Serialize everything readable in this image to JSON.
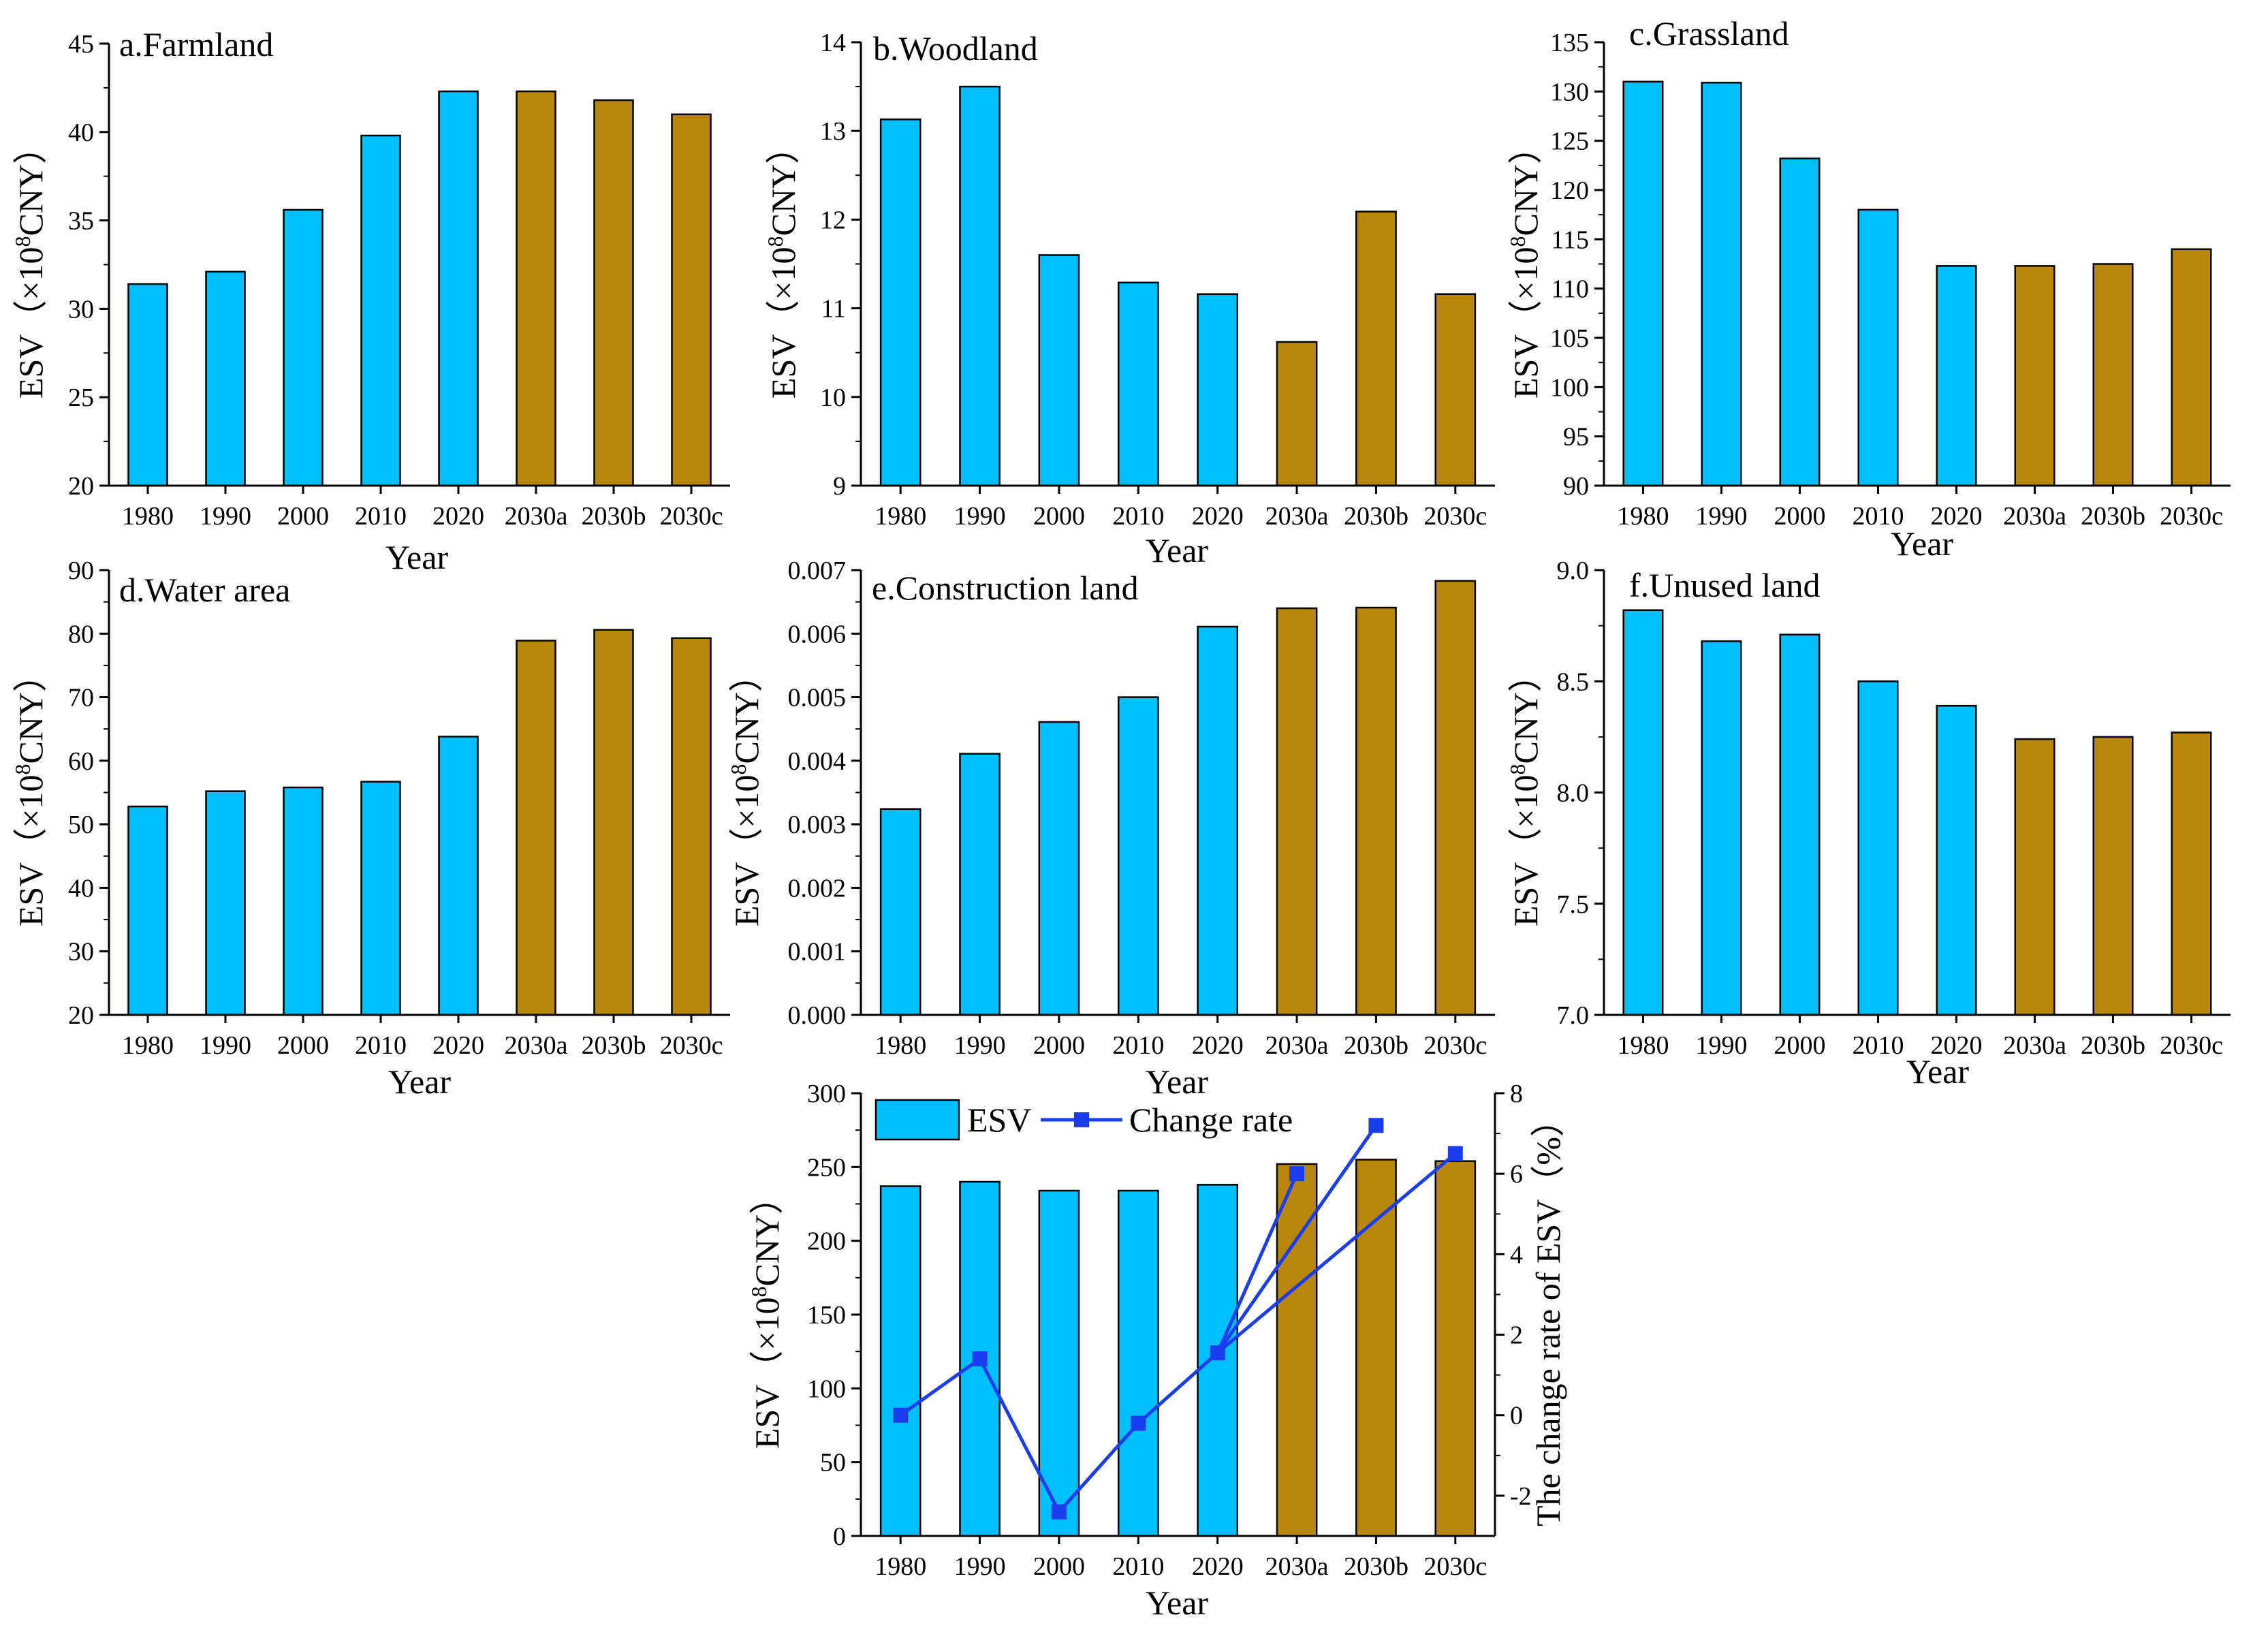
{
  "colors": {
    "observed": "#00bfff",
    "scenario": "#b8860b",
    "line": "#1a3df0",
    "axis": "#000000"
  },
  "ylabel_parts": {
    "pre": "ESV（×10",
    "sup": "8",
    "post": "CNY）"
  },
  "chart_data": [
    {
      "id": "a",
      "type": "bar",
      "title": "a.Farmland",
      "categories": [
        "1980",
        "1990",
        "2000",
        "2010",
        "2020",
        "2030a",
        "2030b",
        "2030c"
      ],
      "values": [
        31.4,
        32.1,
        35.6,
        39.8,
        42.3,
        42.3,
        41.8,
        41.0
      ],
      "ylim": [
        20,
        45
      ],
      "yticks": [
        "20",
        "25",
        "30",
        "35",
        "40",
        "45"
      ],
      "xlabel": "Year",
      "ylabel": "ESV（×10^8CNY）"
    },
    {
      "id": "b",
      "type": "bar",
      "title": "b.Woodland",
      "categories": [
        "1980",
        "1990",
        "2000",
        "2010",
        "2020",
        "2030a",
        "2030b",
        "2030c"
      ],
      "values": [
        13.13,
        13.5,
        11.6,
        11.29,
        11.16,
        10.62,
        12.09,
        11.16
      ],
      "ylim": [
        9,
        14
      ],
      "yticks": [
        "9",
        "10",
        "11",
        "12",
        "13",
        "14"
      ],
      "xlabel": "Year",
      "ylabel": "ESV（×10^8CNY）"
    },
    {
      "id": "c",
      "type": "bar",
      "title": "c.Grassland",
      "categories": [
        "1980",
        "1990",
        "2000",
        "2010",
        "2020",
        "2030a",
        "2030b",
        "2030c"
      ],
      "values": [
        131.0,
        130.9,
        123.2,
        118.0,
        112.3,
        112.3,
        112.5,
        114.0
      ],
      "ylim": [
        90,
        135
      ],
      "yticks": [
        "90",
        "95",
        "100",
        "105",
        "110",
        "115",
        "120",
        "125",
        "130",
        "135"
      ],
      "xlabel": "Year",
      "ylabel": "ESV（×10^8CNY）"
    },
    {
      "id": "d",
      "type": "bar",
      "title": "d.Water area",
      "categories": [
        "1980",
        "1990",
        "2000",
        "2010",
        "2020",
        "2030a",
        "2030b",
        "2030c"
      ],
      "values": [
        52.8,
        55.2,
        55.8,
        56.7,
        63.8,
        78.9,
        80.6,
        79.3
      ],
      "ylim": [
        20,
        90
      ],
      "yticks": [
        "20",
        "30",
        "40",
        "50",
        "60",
        "70",
        "80",
        "90"
      ],
      "xlabel": "Year",
      "ylabel": "ESV（×10^8CNY）"
    },
    {
      "id": "e",
      "type": "bar",
      "title": "e.Construction land",
      "categories": [
        "1980",
        "1990",
        "2000",
        "2010",
        "2020",
        "2030a",
        "2030b",
        "2030c"
      ],
      "values": [
        0.00324,
        0.00411,
        0.00461,
        0.005,
        0.00611,
        0.0064,
        0.00641,
        0.00683
      ],
      "ylim": [
        0,
        0.007
      ],
      "yticks": [
        "0.000",
        "0.001",
        "0.002",
        "0.003",
        "0.004",
        "0.005",
        "0.006",
        "0.007"
      ],
      "xlabel": "Year",
      "ylabel": "ESV（×10^8CNY）"
    },
    {
      "id": "f",
      "type": "bar",
      "title": "f.Unused land",
      "categories": [
        "1980",
        "1990",
        "2000",
        "2010",
        "2020",
        "2030a",
        "2030b",
        "2030c"
      ],
      "values": [
        8.82,
        8.68,
        8.71,
        8.5,
        8.39,
        8.24,
        8.25,
        8.27
      ],
      "ylim": [
        7.0,
        9.0
      ],
      "yticks": [
        "7.0",
        "7.5",
        "8.0",
        "8.5",
        "9.0"
      ],
      "xlabel": "Year",
      "ylabel": "ESV（×10^8CNY）"
    },
    {
      "id": "g",
      "type": "bar+line",
      "title": "",
      "categories": [
        "1980",
        "1990",
        "2000",
        "2010",
        "2020",
        "2030a",
        "2030b",
        "2030c"
      ],
      "values": [
        237,
        240,
        234,
        234,
        238,
        252,
        255,
        254
      ],
      "ylim": [
        0,
        300
      ],
      "yticks": [
        "0",
        "50",
        "100",
        "150",
        "200",
        "250",
        "300"
      ],
      "change_rate": [
        0,
        1.4,
        -2.4,
        -0.2,
        1.55,
        6.0,
        7.2,
        6.5
      ],
      "change_rate_links": [
        [
          0,
          1
        ],
        [
          1,
          2
        ],
        [
          2,
          3
        ],
        [
          3,
          4
        ],
        [
          4,
          5
        ],
        [
          4,
          6
        ],
        [
          4,
          7
        ]
      ],
      "y2lim": [
        -3,
        8
      ],
      "y2ticks": [
        "-2",
        "0",
        "2",
        "4",
        "6",
        "8"
      ],
      "xlabel": "Year",
      "ylabel": "ESV（×10^8CNY）",
      "y2label": "The change rate of ESV（%）",
      "legend": {
        "bar": "ESV",
        "line": "Change rate",
        "placement": "top-left"
      }
    }
  ]
}
